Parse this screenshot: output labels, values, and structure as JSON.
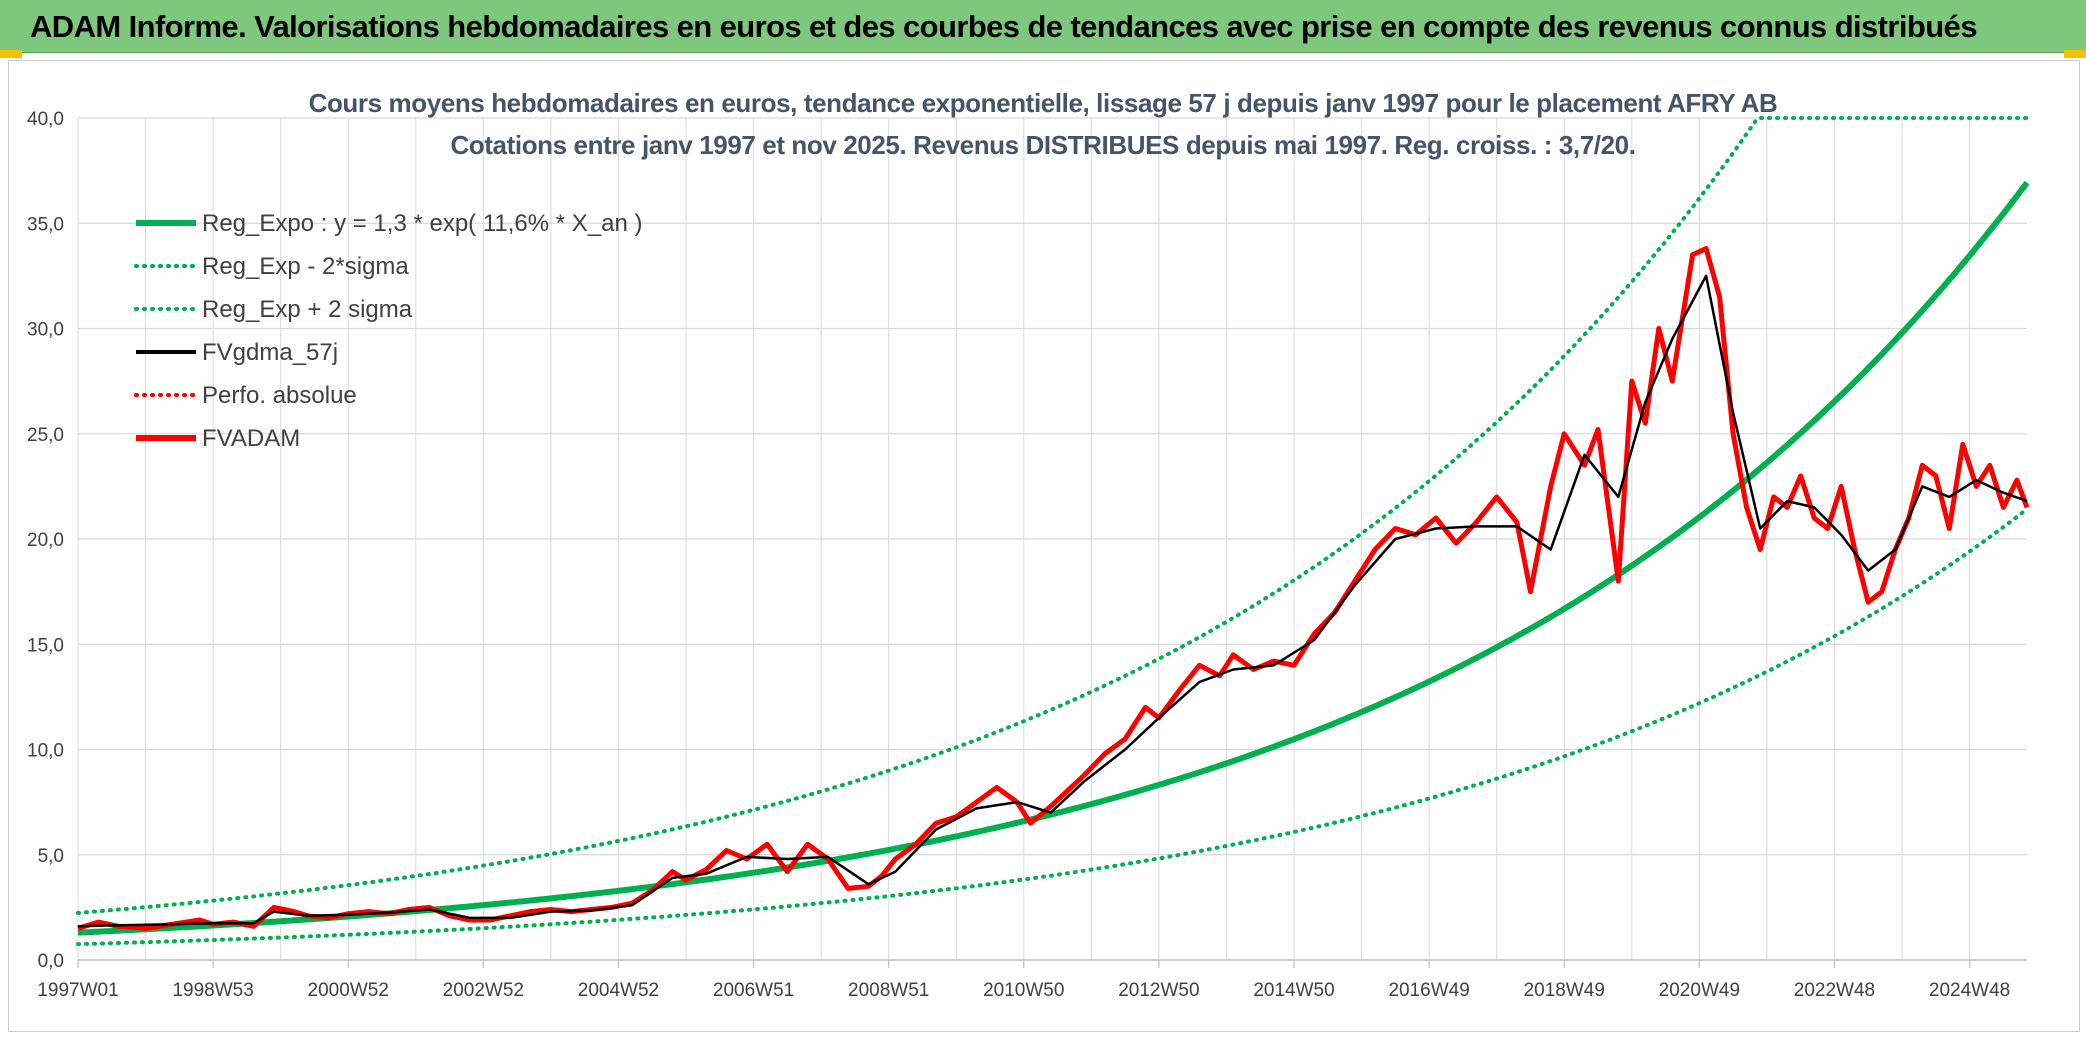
{
  "banner": {
    "title": "ADAM Informe. Valorisations hebdomadaires en euros et des courbes de tendances avec prise en compte des revenus connus distribués"
  },
  "colors": {
    "banner_bg": "#7ec87e",
    "reg_green": "#00b050",
    "smooth_black": "#000000",
    "perf_red": "#ff0000",
    "grid": "#d9d9d9"
  },
  "chart_data": {
    "type": "line",
    "title": "Cours moyens hebdomadaires en euros, tendance exponentielle, lissage 57 j depuis janv 1997 pour le placement AFRY AB",
    "subtitle": "Cotations entre janv 1997 et nov 2025. Revenus DISTRIBUES depuis mai 1997. Reg. croiss. : 3,7/20.",
    "xlabel": "",
    "ylabel": "",
    "ylim": [
      0,
      40
    ],
    "yticks": [
      "0,0",
      "5,0",
      "10,0",
      "15,0",
      "20,0",
      "25,0",
      "30,0",
      "35,0",
      "40,0"
    ],
    "xlim": [
      1997.0,
      2025.85
    ],
    "xticks": [
      {
        "x": 1997.0,
        "label": "1997W01"
      },
      {
        "x": 1999.0,
        "label": "1998W53"
      },
      {
        "x": 2001.0,
        "label": "2000W52"
      },
      {
        "x": 2003.0,
        "label": "2002W52"
      },
      {
        "x": 2005.0,
        "label": "2004W52"
      },
      {
        "x": 2007.0,
        "label": "2006W51"
      },
      {
        "x": 2009.0,
        "label": "2008W51"
      },
      {
        "x": 2011.0,
        "label": "2010W50"
      },
      {
        "x": 2013.0,
        "label": "2012W50"
      },
      {
        "x": 2015.0,
        "label": "2014W50"
      },
      {
        "x": 2017.0,
        "label": "2016W49"
      },
      {
        "x": 2019.0,
        "label": "2018W49"
      },
      {
        "x": 2021.0,
        "label": "2020W49"
      },
      {
        "x": 2023.0,
        "label": "2022W48"
      },
      {
        "x": 2025.0,
        "label": "2024W48"
      }
    ],
    "grid": true,
    "legend_position": "top-left",
    "legend": [
      {
        "label": "Reg_Expo : y = 1,3 * exp( 11,6% *  X_an )",
        "style": "solid-thick",
        "color": "#00b050"
      },
      {
        "label": "Reg_Exp - 2*sigma",
        "style": "dotted",
        "color": "#00b050"
      },
      {
        "label": "Reg_Exp + 2 sigma",
        "style": "dotted",
        "color": "#00b050"
      },
      {
        "label": "FVgdma_57j",
        "style": "solid",
        "color": "#000000"
      },
      {
        "label": "Perfo. absolue",
        "style": "dotted",
        "color": "#ff0000"
      },
      {
        "label": "FVADAM",
        "style": "solid-thick",
        "color": "#ff0000"
      }
    ],
    "regression": {
      "a": 1.3,
      "rate": 0.116,
      "lower_factor": 0.58,
      "upper_factor": 1.72,
      "cap": 40
    },
    "series": [
      {
        "name": "FVADAM",
        "x": [
          1997.0,
          1997.3,
          1997.6,
          1998.0,
          1998.4,
          1998.8,
          1999.0,
          1999.3,
          1999.6,
          1999.9,
          2000.2,
          2000.4,
          2000.7,
          2001.0,
          2001.3,
          2001.6,
          2001.9,
          2002.2,
          2002.5,
          2002.8,
          2003.1,
          2003.4,
          2003.7,
          2004.0,
          2004.3,
          2004.6,
          2004.9,
          2005.2,
          2005.5,
          2005.8,
          2006.0,
          2006.3,
          2006.6,
          2006.9,
          2007.2,
          2007.5,
          2007.8,
          2008.1,
          2008.4,
          2008.7,
          2008.9,
          2009.1,
          2009.4,
          2009.7,
          2010.0,
          2010.3,
          2010.6,
          2010.9,
          2011.1,
          2011.4,
          2011.7,
          2011.9,
          2012.2,
          2012.5,
          2012.8,
          2013.0,
          2013.3,
          2013.6,
          2013.9,
          2014.1,
          2014.4,
          2014.7,
          2015.0,
          2015.3,
          2015.6,
          2015.9,
          2016.2,
          2016.5,
          2016.8,
          2017.1,
          2017.4,
          2017.7,
          2018.0,
          2018.3,
          2018.5,
          2018.8,
          2019.0,
          2019.3,
          2019.5,
          2019.8,
          2020.0,
          2020.2,
          2020.4,
          2020.6,
          2020.9,
          2021.1,
          2021.3,
          2021.5,
          2021.7,
          2021.9,
          2022.1,
          2022.3,
          2022.5,
          2022.7,
          2022.9,
          2023.1,
          2023.3,
          2023.5,
          2023.7,
          2023.9,
          2024.1,
          2024.3,
          2024.5,
          2024.7,
          2024.9,
          2025.1,
          2025.3,
          2025.5,
          2025.7,
          2025.85
        ],
        "y": [
          1.5,
          1.8,
          1.6,
          1.5,
          1.7,
          1.9,
          1.7,
          1.8,
          1.6,
          2.5,
          2.3,
          2.1,
          2.0,
          2.2,
          2.3,
          2.2,
          2.4,
          2.5,
          2.1,
          1.9,
          1.9,
          2.1,
          2.3,
          2.4,
          2.3,
          2.4,
          2.5,
          2.7,
          3.3,
          4.2,
          3.8,
          4.3,
          5.2,
          4.8,
          5.5,
          4.2,
          5.5,
          4.8,
          3.4,
          3.5,
          4.0,
          4.8,
          5.5,
          6.5,
          6.8,
          7.5,
          8.2,
          7.5,
          6.5,
          7.3,
          8.2,
          8.8,
          9.8,
          10.5,
          12.0,
          11.5,
          12.8,
          14.0,
          13.5,
          14.5,
          13.8,
          14.2,
          14.0,
          15.5,
          16.5,
          18.0,
          19.5,
          20.5,
          20.2,
          21.0,
          19.8,
          20.8,
          22.0,
          20.8,
          17.5,
          22.5,
          25.0,
          23.5,
          25.2,
          18.0,
          27.5,
          25.5,
          30.0,
          27.5,
          33.5,
          33.8,
          31.5,
          25.0,
          21.5,
          19.5,
          22.0,
          21.5,
          23.0,
          21.0,
          20.5,
          22.5,
          19.5,
          17.0,
          17.5,
          19.5,
          21.0,
          23.5,
          23.0,
          20.5,
          24.5,
          22.5,
          23.5,
          21.5,
          22.8,
          21.5
        ]
      },
      {
        "name": "FVgdma_57j",
        "x": [
          1997.0,
          1997.6,
          1998.4,
          1999.0,
          1999.6,
          1999.9,
          2000.4,
          2001.0,
          2001.6,
          2002.2,
          2002.8,
          2003.4,
          2004.0,
          2004.6,
          2005.2,
          2005.8,
          2006.3,
          2006.9,
          2007.5,
          2008.1,
          2008.7,
          2009.1,
          2009.7,
          2010.3,
          2010.9,
          2011.4,
          2011.9,
          2012.5,
          2013.0,
          2013.6,
          2014.1,
          2014.7,
          2015.3,
          2015.9,
          2016.5,
          2017.1,
          2017.7,
          2018.3,
          2018.8,
          2019.3,
          2019.8,
          2020.2,
          2020.6,
          2021.1,
          2021.5,
          2021.9,
          2022.3,
          2022.7,
          2023.1,
          2023.5,
          2023.9,
          2024.3,
          2024.7,
          2025.1,
          2025.5,
          2025.85
        ],
        "y": [
          1.6,
          1.65,
          1.7,
          1.75,
          1.75,
          2.3,
          2.1,
          2.15,
          2.25,
          2.4,
          2.0,
          2.0,
          2.3,
          2.35,
          2.6,
          3.9,
          4.1,
          4.9,
          4.8,
          4.9,
          3.6,
          4.2,
          6.2,
          7.2,
          7.5,
          7.0,
          8.5,
          10.0,
          11.5,
          13.2,
          13.8,
          14.0,
          15.2,
          17.8,
          20.0,
          20.5,
          20.6,
          20.6,
          19.5,
          24.0,
          22.0,
          26.5,
          29.5,
          32.5,
          26.0,
          20.5,
          21.8,
          21.5,
          20.2,
          18.5,
          19.5,
          22.5,
          22.0,
          22.8,
          22.2,
          21.8
        ]
      }
    ]
  }
}
